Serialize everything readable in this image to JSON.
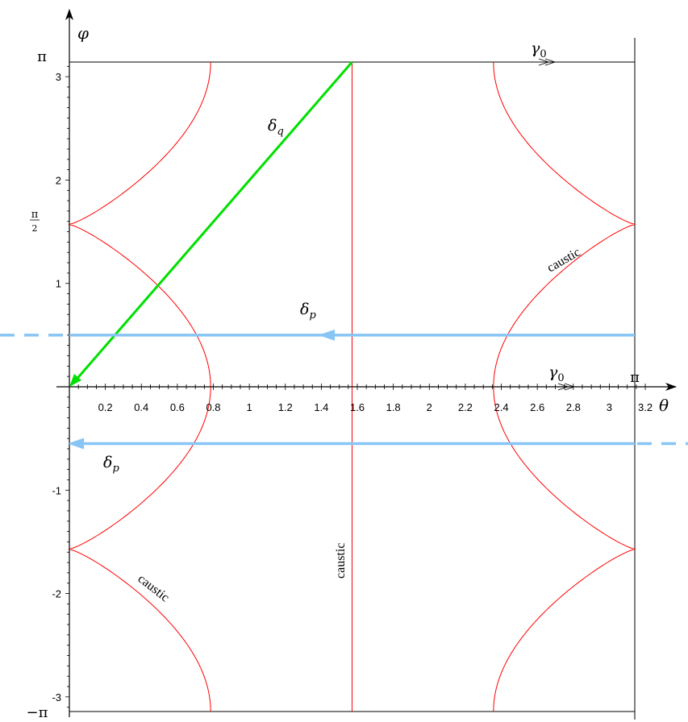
{
  "chart_data": {
    "type": "line",
    "x_axis": {
      "symbol": "θ",
      "range": [
        0,
        3.3
      ],
      "major_ticks": [
        0.2,
        0.4,
        0.6,
        0.8,
        1,
        1.2,
        1.4,
        1.6,
        1.8,
        2,
        2.2,
        2.4,
        2.6,
        2.8,
        3,
        3.2
      ],
      "major_tick_labels": [
        "0.2",
        "0.4",
        "0.6",
        "0.8",
        "1",
        "1.2",
        "1.4",
        "1.6",
        "1.8",
        "2",
        "2.2",
        "2.4",
        "2.6",
        "2.8",
        "3",
        "3.2"
      ],
      "pi_label": "π"
    },
    "y_axis": {
      "symbol": "φ",
      "range": [
        -3.14159,
        3.14159
      ],
      "major_ticks": [
        -3,
        -2,
        -1,
        1,
        2,
        3
      ],
      "major_tick_labels": [
        "-3",
        "-2",
        "-1",
        "1",
        "2",
        "3"
      ],
      "pi_label": "π",
      "neg_pi_label": "−π",
      "half_pi_label": {
        "numerator": "π",
        "denominator": "2"
      }
    },
    "caustic": {
      "color": "#ff0000",
      "labels": [
        "caustic",
        "caustic",
        "caustic"
      ],
      "vertical_line_theta": 1.5708,
      "boundary_theta": 3.14159,
      "cusps": [
        {
          "theta": 0,
          "phi": 1.5708
        },
        {
          "theta": 0,
          "phi": -1.5708
        },
        {
          "theta": 3.14159,
          "phi": 1.5708
        },
        {
          "theta": 3.14159,
          "phi": -1.5708
        }
      ],
      "max_extent_theta": 0.785
    },
    "boundary_lines": {
      "top_phi": 3.14159,
      "bottom_phi": -3.14159,
      "right_theta": 3.14159
    },
    "series": [
      {
        "name": "δq",
        "color": "#00e000",
        "style": "solid",
        "from": {
          "theta": 1.5708,
          "phi": 3.14159
        },
        "to": {
          "theta": 0,
          "phi": 0
        },
        "label_sub": "q"
      },
      {
        "name": "δp",
        "color": "#87c5f5",
        "style": "solid",
        "phi": 0.5,
        "direction": "left",
        "label_sub": "p"
      },
      {
        "name": "δp",
        "color": "#87c5f5",
        "style": "solid",
        "phi": -0.55,
        "direction": "left",
        "label_sub": "p"
      }
    ],
    "gamma_labels": [
      {
        "name": "γ0",
        "phi": 3.14159,
        "label_sub": "0"
      },
      {
        "name": "γ0",
        "phi": 0,
        "label_sub": "0"
      }
    ]
  }
}
